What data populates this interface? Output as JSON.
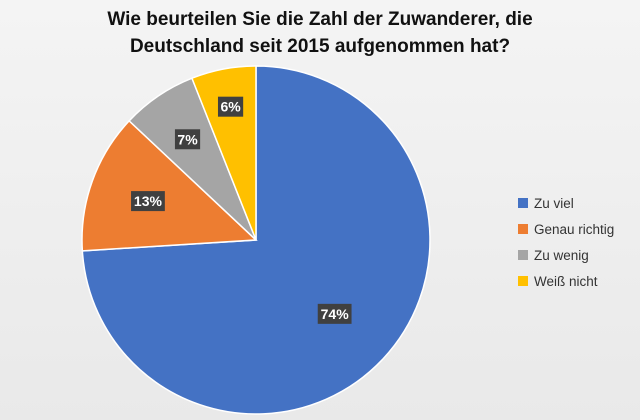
{
  "chart_data": {
    "type": "pie",
    "title": "Wie beurteilen Sie die Zahl der Zuwanderer, die Deutschland seit 2015 aufgenommen hat?",
    "title_lines": [
      "Wie beurteilen Sie die Zahl der Zuwanderer, die",
      "Deutschland seit 2015 aufgenommen hat?"
    ],
    "categories": [
      "Zu viel",
      "Genau richtig",
      "Zu wenig",
      "Weiß nicht"
    ],
    "values": [
      74,
      13,
      7,
      6
    ],
    "data_labels": [
      "74%",
      "13%",
      "7%",
      "6%"
    ],
    "colors": [
      "#4472C4",
      "#ED7D31",
      "#A5A5A5",
      "#FFC000"
    ],
    "start_angle_deg": 0,
    "direction": "clockwise",
    "legend_position": "right"
  }
}
